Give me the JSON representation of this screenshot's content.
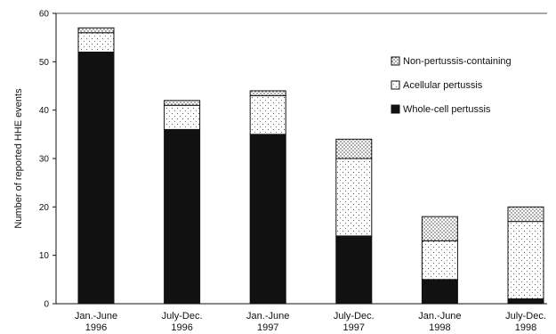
{
  "chart_data": {
    "type": "bar",
    "stacked": true,
    "title": "",
    "xlabel": "",
    "ylabel": "Number of reported HHE events",
    "ylim": [
      0,
      60
    ],
    "yticks": [
      0,
      10,
      20,
      30,
      40,
      50,
      60
    ],
    "grid": false,
    "legend_position": "top-right",
    "categories": [
      [
        "Jan.-June",
        "1996"
      ],
      [
        "July-Dec.",
        "1996"
      ],
      [
        "Jan.-June",
        "1997"
      ],
      [
        "July-Dec.",
        "1997"
      ],
      [
        "Jan.-June",
        "1998"
      ],
      [
        "July-Dec.",
        "1998"
      ]
    ],
    "series": [
      {
        "name": "Whole-cell pertussis",
        "values": [
          52,
          36,
          35,
          14,
          5,
          1
        ],
        "fill": "#111111"
      },
      {
        "name": "Acellular pertussis",
        "values": [
          4,
          5,
          8,
          16,
          8,
          16
        ],
        "fill": "dots"
      },
      {
        "name": "Non-pertussis-containing",
        "values": [
          1,
          1,
          1,
          4,
          5,
          3
        ],
        "fill": "hatch"
      }
    ],
    "legend_order": [
      2,
      1,
      0
    ]
  }
}
